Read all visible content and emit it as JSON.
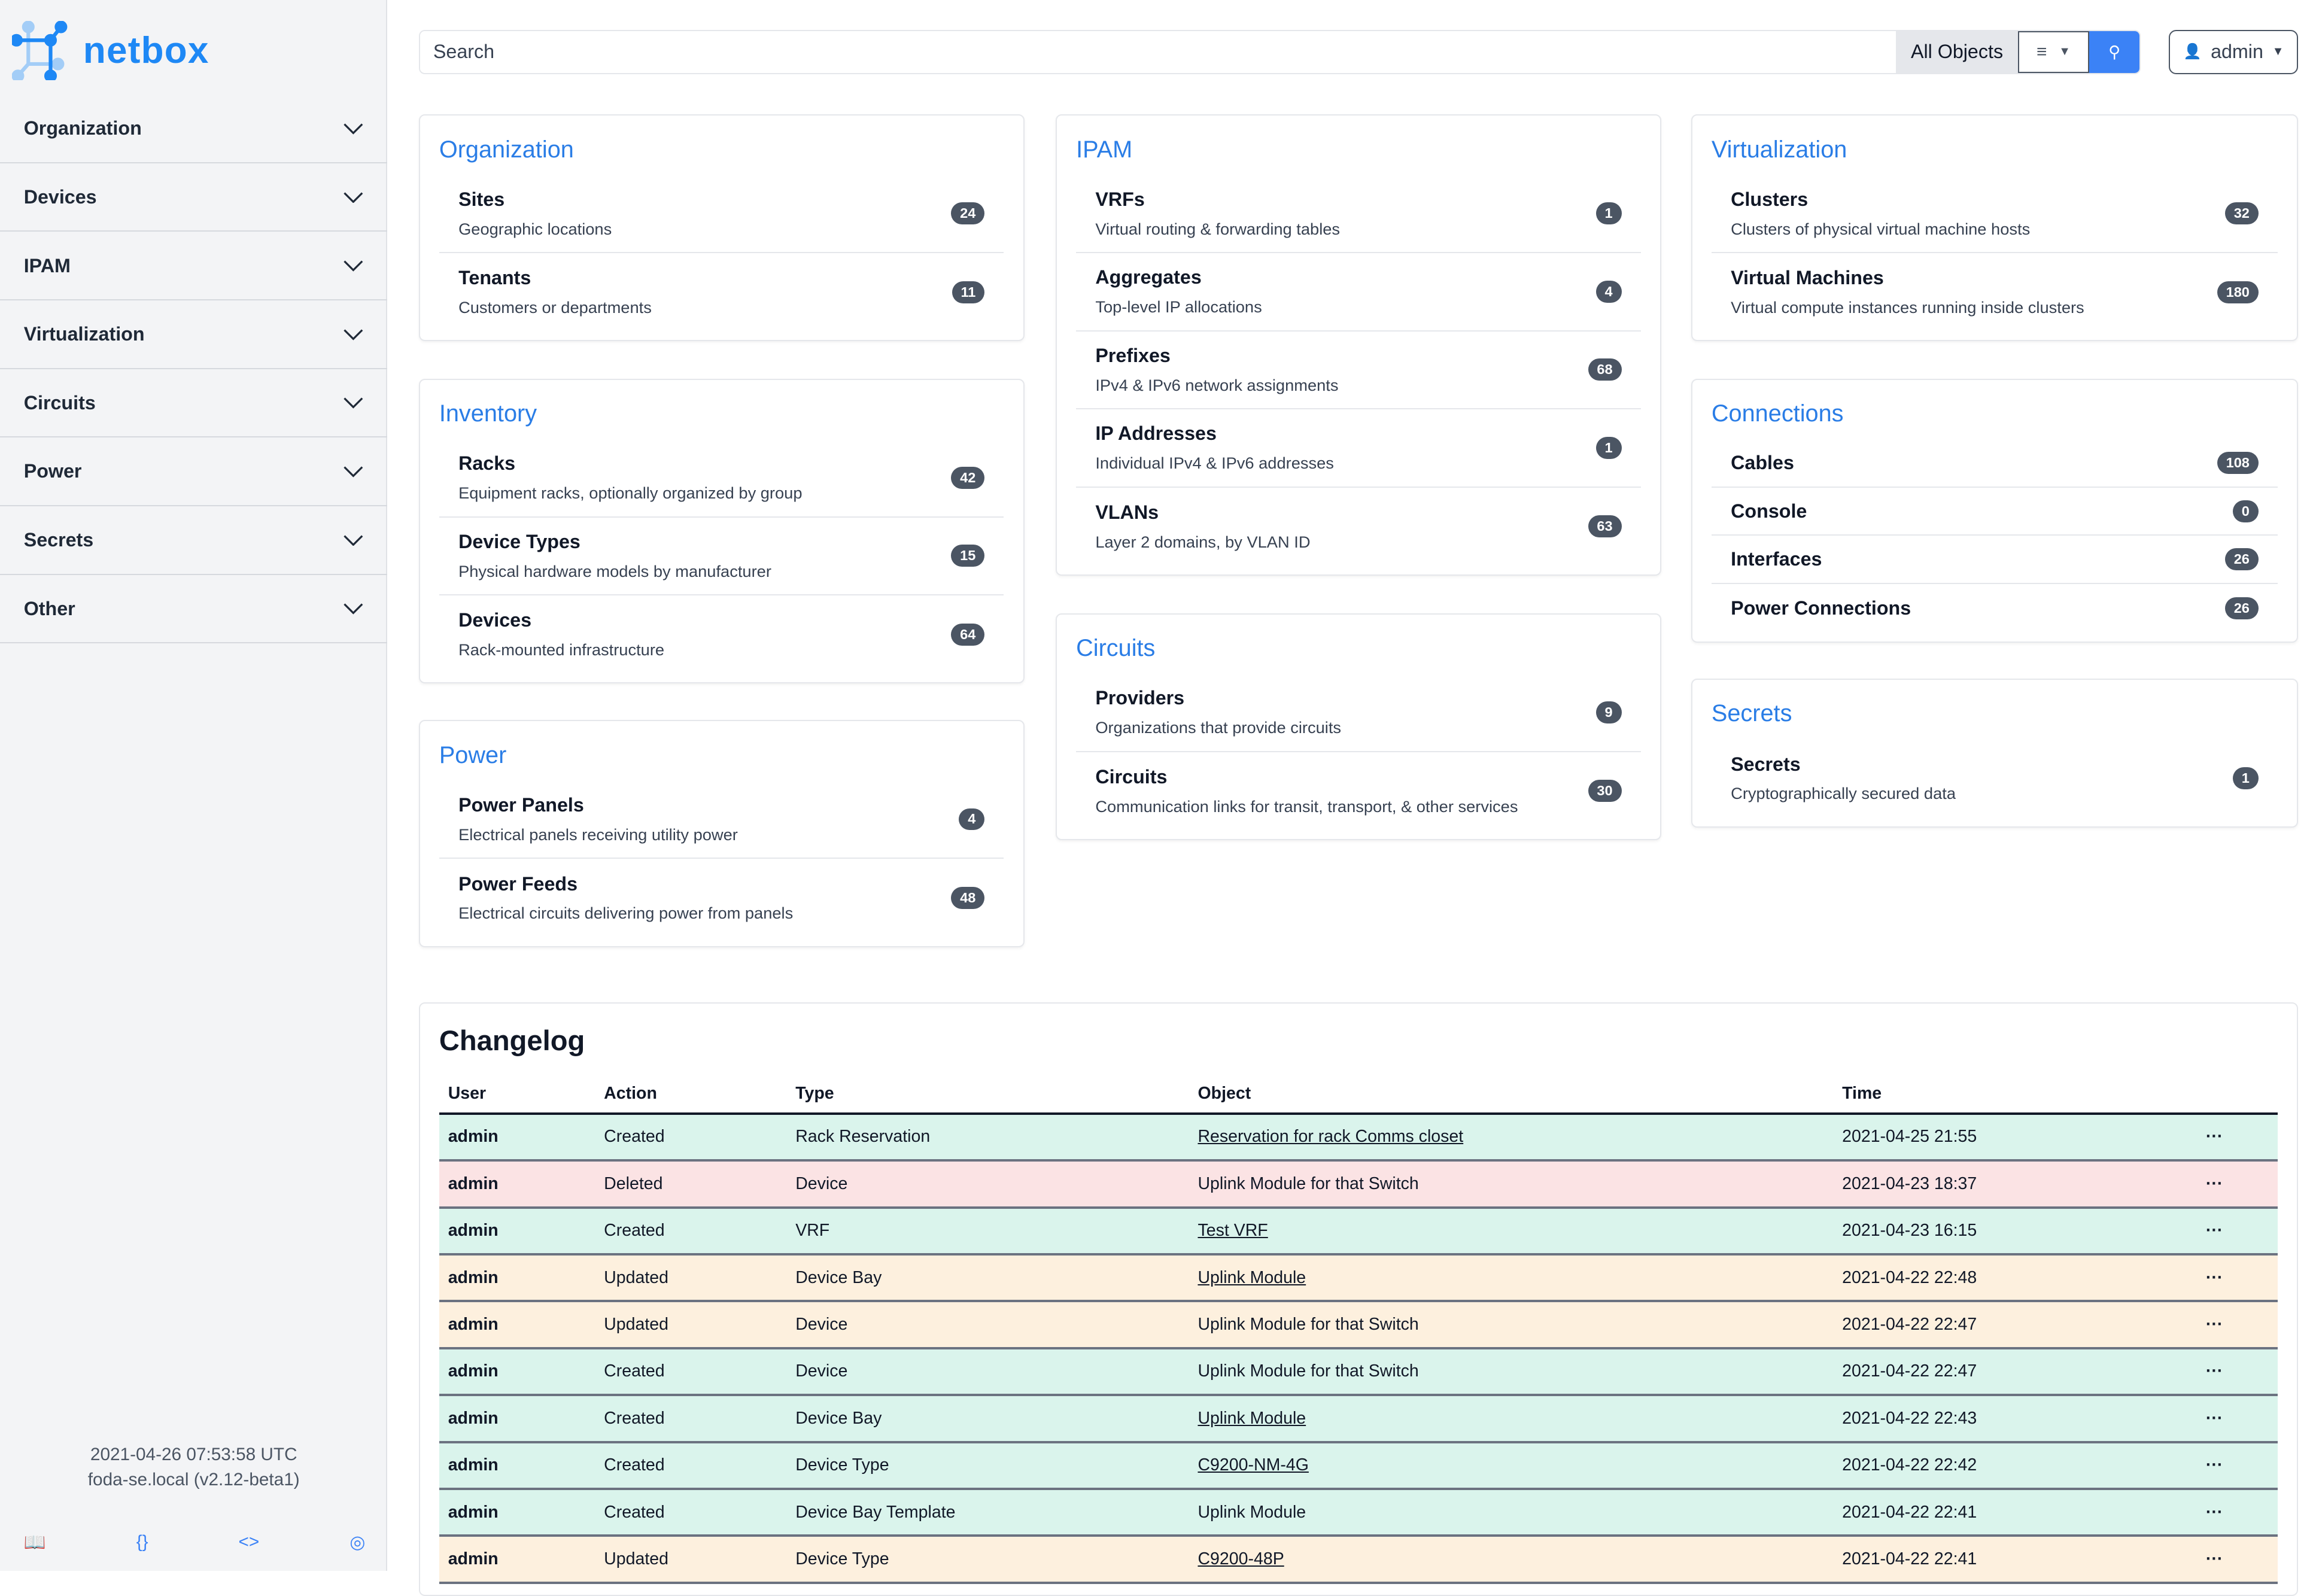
{
  "brand": {
    "name": "netbox",
    "accent": "#1e88f5"
  },
  "sidebar": {
    "items": [
      {
        "label": "Organization"
      },
      {
        "label": "Devices"
      },
      {
        "label": "IPAM"
      },
      {
        "label": "Virtualization"
      },
      {
        "label": "Circuits"
      },
      {
        "label": "Power"
      },
      {
        "label": "Secrets"
      },
      {
        "label": "Other"
      }
    ],
    "footer": {
      "time": "2021-04-26 07:53:58 UTC",
      "host": "foda-se.local (v2.12-beta1)",
      "icons": [
        "book-icon",
        "braces-icon",
        "code-icon",
        "lifebuoy-icon"
      ]
    }
  },
  "search": {
    "placeholder": "Search",
    "scope": "All Objects"
  },
  "user": {
    "label": "admin"
  },
  "cards": [
    {
      "title": "Organization",
      "items": [
        {
          "t": "Sites",
          "d": "Geographic locations",
          "c": "24"
        },
        {
          "t": "Tenants",
          "d": "Customers or departments",
          "c": "11"
        }
      ]
    },
    {
      "title": "Inventory",
      "items": [
        {
          "t": "Racks",
          "d": "Equipment racks, optionally organized by group",
          "c": "42"
        },
        {
          "t": "Device Types",
          "d": "Physical hardware models by manufacturer",
          "c": "15"
        },
        {
          "t": "Devices",
          "d": "Rack-mounted infrastructure",
          "c": "64"
        }
      ]
    },
    {
      "title": "Power",
      "items": [
        {
          "t": "Power Panels",
          "d": "Electrical panels receiving utility power",
          "c": "4"
        },
        {
          "t": "Power Feeds",
          "d": "Electrical circuits delivering power from panels",
          "c": "48"
        }
      ]
    },
    {
      "title": "IPAM",
      "items": [
        {
          "t": "VRFs",
          "d": "Virtual routing & forwarding tables",
          "c": "1"
        },
        {
          "t": "Aggregates",
          "d": "Top-level IP allocations",
          "c": "4"
        },
        {
          "t": "Prefixes",
          "d": "IPv4 & IPv6 network assignments",
          "c": "68"
        },
        {
          "t": "IP Addresses",
          "d": "Individual IPv4 & IPv6 addresses",
          "c": "1"
        },
        {
          "t": "VLANs",
          "d": "Layer 2 domains, by VLAN ID",
          "c": "63"
        }
      ]
    },
    {
      "title": "Circuits",
      "items": [
        {
          "t": "Providers",
          "d": "Organizations that provide circuits",
          "c": "9"
        },
        {
          "t": "Circuits",
          "d": "Communication links for transit, transport, & other services",
          "c": "30"
        }
      ]
    },
    {
      "title": "Virtualization",
      "items": [
        {
          "t": "Clusters",
          "d": "Clusters of physical virtual machine hosts",
          "c": "32"
        },
        {
          "t": "Virtual Machines",
          "d": "Virtual compute instances running inside clusters",
          "c": "180"
        }
      ]
    },
    {
      "title": "Connections",
      "items": [
        {
          "t": "Cables",
          "c": "108"
        },
        {
          "t": "Console",
          "c": "0"
        },
        {
          "t": "Interfaces",
          "c": "26"
        },
        {
          "t": "Power Connections",
          "c": "26"
        }
      ]
    },
    {
      "title": "Secrets",
      "items": [
        {
          "t": "Secrets",
          "d": "Cryptographically secured data",
          "c": "1"
        }
      ]
    }
  ],
  "changelog": {
    "title": "Changelog",
    "columns": [
      "User",
      "Action",
      "Type",
      "Object",
      "Time",
      ""
    ],
    "colors": {
      "Created": "#daf4ec",
      "Deleted": "#fbe3e4",
      "Updated": "#fdf0de"
    },
    "rows": [
      {
        "user": "admin",
        "action": "Created",
        "type": "Rack Reservation",
        "object": "Reservation for rack Comms closet",
        "link": true,
        "time": "2021-04-25 21:55"
      },
      {
        "user": "admin",
        "action": "Deleted",
        "type": "Device",
        "object": "Uplink Module for that Switch",
        "link": false,
        "time": "2021-04-23 18:37"
      },
      {
        "user": "admin",
        "action": "Created",
        "type": "VRF",
        "object": "Test VRF",
        "link": true,
        "time": "2021-04-23 16:15"
      },
      {
        "user": "admin",
        "action": "Updated",
        "type": "Device Bay",
        "object": "Uplink Module",
        "link": true,
        "time": "2021-04-22 22:48"
      },
      {
        "user": "admin",
        "action": "Updated",
        "type": "Device",
        "object": "Uplink Module for that Switch",
        "link": false,
        "time": "2021-04-22 22:47"
      },
      {
        "user": "admin",
        "action": "Created",
        "type": "Device",
        "object": "Uplink Module for that Switch",
        "link": false,
        "time": "2021-04-22 22:47"
      },
      {
        "user": "admin",
        "action": "Created",
        "type": "Device Bay",
        "object": "Uplink Module",
        "link": true,
        "time": "2021-04-22 22:43"
      },
      {
        "user": "admin",
        "action": "Created",
        "type": "Device Type",
        "object": "C9200-NM-4G",
        "link": true,
        "time": "2021-04-22 22:42"
      },
      {
        "user": "admin",
        "action": "Created",
        "type": "Device Bay Template",
        "object": "Uplink Module",
        "link": false,
        "time": "2021-04-22 22:41"
      },
      {
        "user": "admin",
        "action": "Updated",
        "type": "Device Type",
        "object": "C9200-48P",
        "link": true,
        "time": "2021-04-22 22:41"
      }
    ]
  }
}
